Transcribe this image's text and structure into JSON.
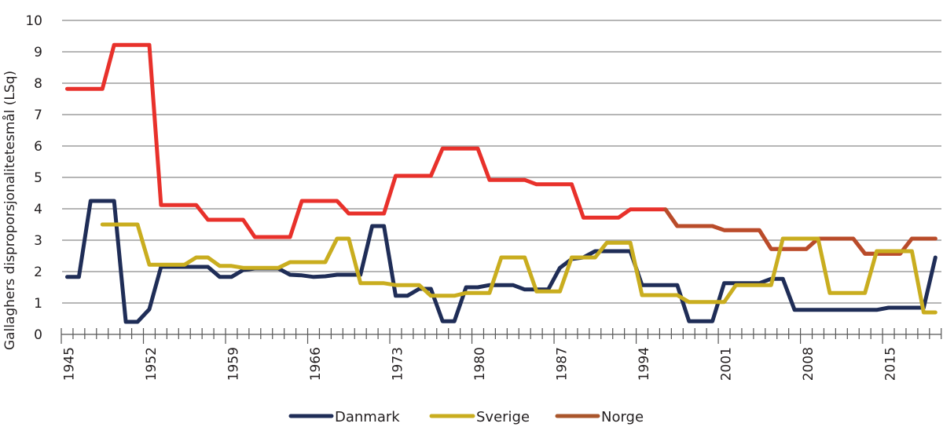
{
  "chart_data": {
    "type": "line",
    "title": "",
    "xlabel": "",
    "ylabel": "Gallaghers disproporsjonalitetesmål (LSq)",
    "ylim": [
      0,
      10
    ],
    "yticks": [
      "0",
      "1",
      "2",
      "3",
      "4",
      "5",
      "6",
      "7",
      "8",
      "9",
      "10"
    ],
    "xticks": [
      "1945",
      "1952",
      "1959",
      "1966",
      "1973",
      "1980",
      "1987",
      "1994",
      "2001",
      "2008",
      "2015"
    ],
    "grid": true,
    "legend_position": "bottom",
    "x": [
      1945,
      1946,
      1947,
      1948,
      1949,
      1950,
      1951,
      1952,
      1953,
      1954,
      1955,
      1956,
      1957,
      1958,
      1959,
      1960,
      1961,
      1962,
      1963,
      1964,
      1965,
      1966,
      1967,
      1968,
      1969,
      1970,
      1971,
      1972,
      1973,
      1974,
      1975,
      1976,
      1977,
      1978,
      1979,
      1980,
      1981,
      1982,
      1983,
      1984,
      1985,
      1986,
      1987,
      1988,
      1989,
      1990,
      1991,
      1992,
      1993,
      1994,
      1995,
      1996,
      1997,
      1998,
      1999,
      2000,
      2001,
      2002,
      2003,
      2004,
      2005,
      2006,
      2007,
      2008,
      2009,
      2010,
      2011,
      2012,
      2013,
      2014,
      2015,
      2016,
      2017,
      2018,
      2019
    ],
    "series": [
      {
        "name": "Danmark",
        "color": "#1f2d57",
        "values": [
          1.83,
          1.83,
          4.25,
          4.25,
          4.25,
          0.4,
          0.4,
          0.8,
          2.15,
          2.15,
          2.15,
          2.15,
          2.15,
          1.83,
          1.83,
          2.05,
          2.1,
          2.1,
          2.1,
          1.9,
          1.88,
          1.83,
          1.85,
          1.9,
          1.9,
          1.9,
          3.45,
          3.45,
          1.23,
          1.23,
          1.45,
          1.45,
          0.42,
          0.42,
          1.5,
          1.5,
          1.57,
          1.57,
          1.57,
          1.43,
          1.43,
          1.43,
          2.12,
          2.4,
          2.45,
          2.65,
          2.65,
          2.65,
          2.65,
          1.57,
          1.57,
          1.57,
          1.57,
          0.42,
          0.42,
          0.42,
          1.63,
          1.63,
          1.63,
          1.63,
          1.77,
          1.77,
          0.78,
          0.78,
          0.78,
          0.78,
          0.78,
          0.78,
          0.78,
          0.78,
          0.85,
          0.85,
          0.85,
          0.85,
          2.45
        ]
      },
      {
        "name": "Sverige",
        "color": "#c9ad1f",
        "values": [
          null,
          null,
          null,
          3.5,
          3.5,
          3.5,
          3.5,
          2.22,
          2.22,
          2.22,
          2.22,
          2.45,
          2.45,
          2.18,
          2.18,
          2.12,
          2.12,
          2.12,
          2.12,
          2.3,
          2.3,
          2.3,
          2.3,
          3.05,
          3.05,
          1.63,
          1.63,
          1.63,
          1.57,
          1.57,
          1.57,
          1.23,
          1.23,
          1.23,
          1.32,
          1.32,
          1.32,
          2.45,
          2.45,
          2.45,
          1.37,
          1.37,
          1.37,
          2.45,
          2.45,
          2.45,
          2.92,
          2.92,
          2.92,
          1.25,
          1.25,
          1.25,
          1.25,
          1.03,
          1.03,
          1.03,
          1.03,
          1.57,
          1.57,
          1.57,
          1.57,
          3.05,
          3.05,
          3.05,
          3.05,
          1.32,
          1.32,
          1.32,
          1.32,
          2.65,
          2.65,
          2.65,
          2.65,
          0.7,
          0.7
        ]
      },
      {
        "name": "Norge",
        "color": "#a9552b",
        "line_color": "#e8312b",
        "values": [
          7.82,
          7.82,
          7.82,
          7.82,
          9.22,
          9.22,
          9.22,
          9.22,
          4.12,
          4.12,
          4.12,
          4.12,
          3.65,
          3.65,
          3.65,
          3.65,
          3.1,
          3.1,
          3.1,
          3.1,
          4.25,
          4.25,
          4.25,
          4.25,
          3.85,
          3.85,
          3.85,
          3.85,
          5.05,
          5.05,
          5.05,
          5.05,
          5.92,
          5.92,
          5.92,
          5.92,
          4.92,
          4.92,
          4.92,
          4.92,
          4.78,
          4.78,
          4.78,
          4.78,
          3.72,
          3.72,
          3.72,
          3.72,
          3.98,
          3.98,
          3.98,
          3.98,
          3.45,
          3.45,
          3.45,
          3.45,
          3.32,
          3.32,
          3.32,
          3.32,
          2.72,
          2.72,
          2.72,
          2.72,
          3.05,
          3.05,
          3.05,
          3.05,
          2.57,
          2.57,
          2.57,
          2.57,
          3.05,
          3.05,
          3.05
        ]
      }
    ]
  }
}
